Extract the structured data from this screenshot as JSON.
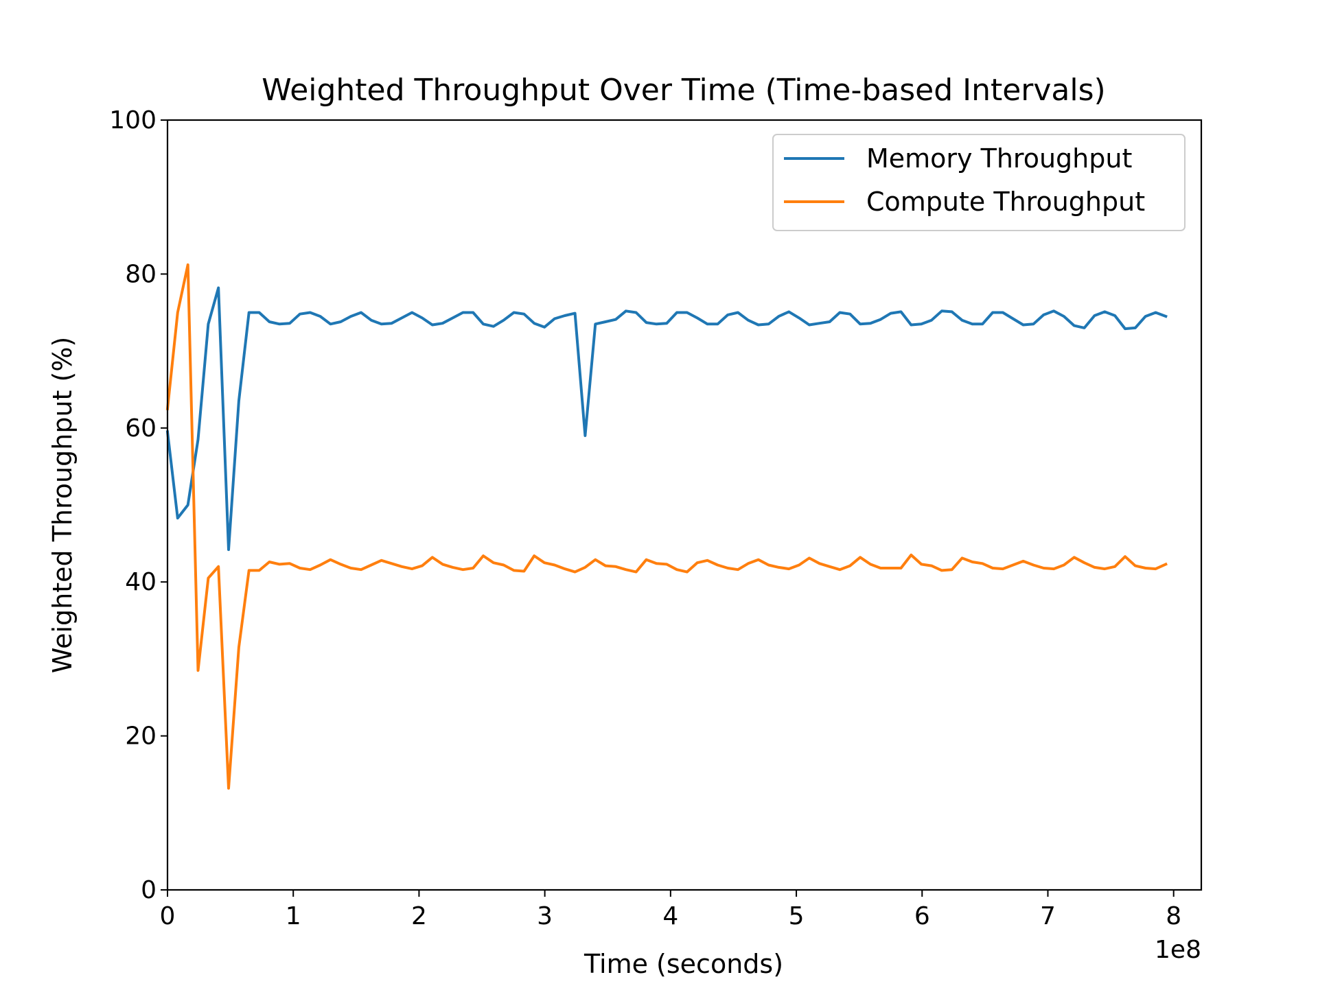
{
  "chart_data": {
    "type": "line",
    "title": "Weighted Throughput Over Time (Time-based Intervals)",
    "xlabel": "Time (seconds)",
    "ylabel": "Weighted Throughput (%)",
    "x_offset_label": "1e8",
    "xlim": [
      0,
      8.22
    ],
    "ylim": [
      0,
      100
    ],
    "x_ticks": [
      0,
      1,
      2,
      3,
      4,
      5,
      6,
      7,
      8
    ],
    "x_tick_labels": [
      "0",
      "1",
      "2",
      "3",
      "4",
      "5",
      "6",
      "7",
      "8"
    ],
    "y_ticks": [
      0,
      20,
      40,
      60,
      80,
      100
    ],
    "y_tick_labels": [
      "0",
      "20",
      "40",
      "60",
      "80",
      "100"
    ],
    "grid": false,
    "legend_position": "top-right",
    "x_start": 0,
    "x_step": 0.081,
    "series": [
      {
        "name": "Memory Throughput",
        "color": "#1f77b4",
        "values": [
          59.5,
          48.3,
          50.0,
          58.5,
          73.5,
          78.2,
          44.2,
          63.5,
          75.0,
          75.0,
          73.8,
          73.5,
          73.6,
          74.8,
          75.0,
          74.5,
          73.5,
          73.8,
          74.5,
          75.0,
          74.0,
          73.5,
          73.6,
          74.3,
          75.0,
          74.3,
          73.4,
          73.6,
          74.3,
          75.0,
          75.0,
          73.5,
          73.2,
          74.0,
          75.0,
          74.8,
          73.6,
          73.1,
          74.2,
          74.6,
          74.9,
          59.0,
          73.5,
          73.8,
          74.1,
          75.2,
          75.0,
          73.7,
          73.5,
          73.6,
          75.0,
          75.0,
          74.3,
          73.5,
          73.5,
          74.7,
          75.0,
          74.0,
          73.4,
          73.5,
          74.5,
          75.1,
          74.3,
          73.4,
          73.6,
          73.8,
          75.0,
          74.8,
          73.5,
          73.6,
          74.1,
          74.9,
          75.1,
          73.4,
          73.5,
          74.0,
          75.2,
          75.1,
          74.0,
          73.5,
          73.5,
          75.0,
          75.0,
          74.2,
          73.4,
          73.5,
          74.7,
          75.2,
          74.5,
          73.3,
          73.0,
          74.6,
          75.1,
          74.6,
          72.9,
          73.0,
          74.5,
          75.0,
          74.5
        ]
      },
      {
        "name": "Compute Throughput",
        "color": "#ff7f0e",
        "values": [
          62.5,
          75.0,
          81.2,
          28.5,
          40.5,
          42.0,
          13.2,
          31.5,
          41.5,
          41.5,
          42.6,
          42.3,
          42.4,
          41.8,
          41.6,
          42.2,
          42.9,
          42.3,
          41.8,
          41.6,
          42.2,
          42.8,
          42.4,
          42.0,
          41.7,
          42.1,
          43.2,
          42.3,
          41.9,
          41.6,
          41.8,
          43.4,
          42.5,
          42.2,
          41.5,
          41.4,
          43.4,
          42.5,
          42.2,
          41.7,
          41.3,
          41.9,
          42.9,
          42.1,
          42.0,
          41.6,
          41.3,
          42.9,
          42.4,
          42.3,
          41.6,
          41.3,
          42.5,
          42.8,
          42.2,
          41.8,
          41.6,
          42.4,
          42.9,
          42.2,
          41.9,
          41.7,
          42.2,
          43.1,
          42.4,
          42.0,
          41.6,
          42.1,
          43.2,
          42.3,
          41.8,
          41.8,
          41.8,
          43.5,
          42.3,
          42.1,
          41.5,
          41.6,
          43.1,
          42.6,
          42.4,
          41.8,
          41.7,
          42.2,
          42.7,
          42.2,
          41.8,
          41.7,
          42.2,
          43.2,
          42.5,
          41.9,
          41.7,
          42.0,
          43.3,
          42.1,
          41.8,
          41.7,
          42.3
        ]
      }
    ]
  }
}
